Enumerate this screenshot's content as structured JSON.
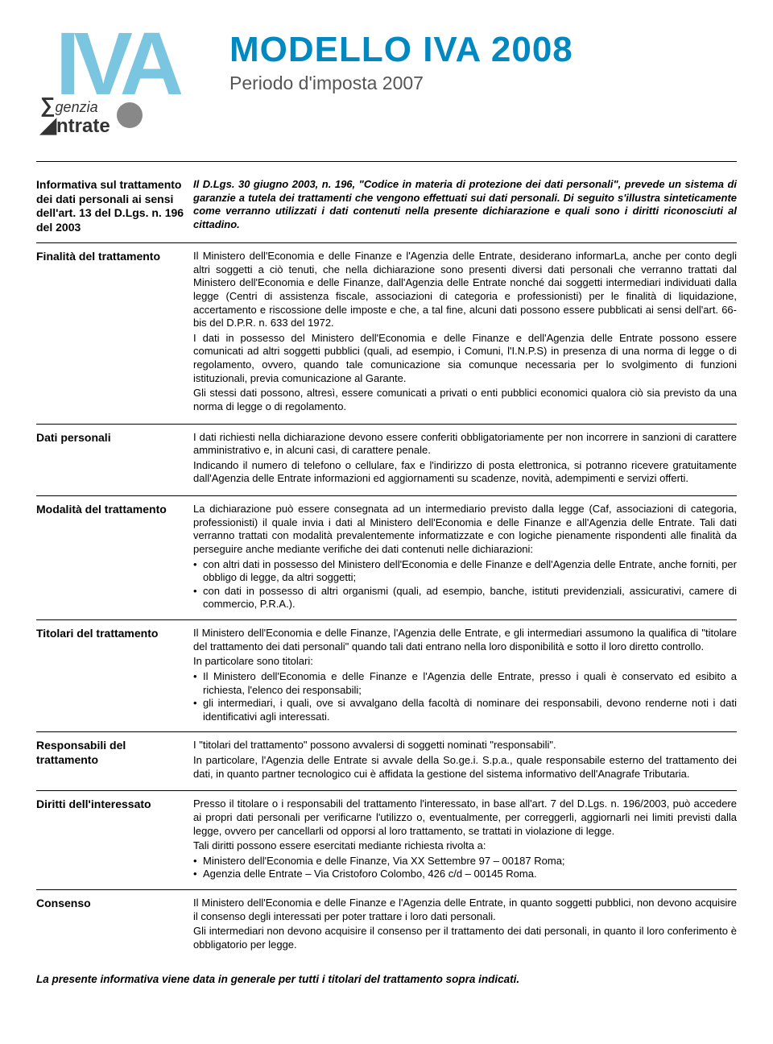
{
  "header": {
    "logo_letters": "IVA",
    "agency_line1": "genzia",
    "agency_line2": "ntrate",
    "title": "MODELLO IVA 2008",
    "subtitle": "Periodo d'imposta 2007"
  },
  "sections": [
    {
      "label": "Informativa sul trattamento dei dati personali ai sensi dell'art. 13 del D.Lgs. n. 196 del 2003",
      "body": "Il D.Lgs. 30 giugno 2003, n. 196, \"Codice in materia di protezione dei dati personali\", prevede un sistema di garanzie a tutela dei trattamenti che vengono effettuati sui dati personali. Di seguito s'illustra sinteticamente come verranno utilizzati i dati contenuti nella presente dichiarazione e quali sono i diritti riconosciuti al cittadino.",
      "bold_intro": true
    },
    {
      "label": "Finalità del trattamento",
      "body": "Il Ministero dell'Economia e delle Finanze e l'Agenzia delle Entrate, desiderano informarLa, anche per conto degli altri soggetti a ciò tenuti, che nella dichiarazione sono presenti diversi dati personali che verranno trattati dal Ministero dell'Economia e delle Finanze, dall'Agenzia delle Entrate nonché dai soggetti intermediari individuati dalla legge (Centri di assistenza fiscale, associazioni di categoria e professionisti) per le finalità di liquidazione, accertamento e riscossione delle imposte e che, a tal fine, alcuni dati possono essere pubblicati ai sensi dell'art. 66-bis del D.P.R. n. 633 del 1972.\nI dati in possesso del Ministero dell'Economia e delle Finanze e dell'Agenzia delle Entrate possono essere comunicati ad altri soggetti pubblici (quali, ad esempio, i Comuni, l'I.N.P.S) in presenza di una norma di legge o di regolamento, ovvero, quando tale comunicazione sia comunque necessaria per lo svolgimento di funzioni istituzionali, previa comunicazione al Garante.\nGli stessi dati possono, altresì, essere comunicati a privati o enti pubblici economici qualora ciò sia previsto da una norma di legge o di regolamento."
    },
    {
      "label": "Dati personali",
      "body": "I dati richiesti nella dichiarazione devono essere conferiti obbligatoriamente per non incorrere in sanzioni di carattere amministrativo e, in alcuni casi, di carattere penale.\nIndicando il numero di telefono o cellulare, fax e l'indirizzo di posta elettronica, si potranno ricevere gratuitamente dall'Agenzia delle Entrate informazioni ed aggiornamenti su scadenze, novità, adempimenti e servizi offerti."
    },
    {
      "label": "Modalità del trattamento",
      "body": "La dichiarazione può essere consegnata ad un intermediario previsto dalla legge (Caf, associazioni di categoria, professionisti) il quale invia i dati al Ministero dell'Economia e delle Finanze e all'Agenzia delle Entrate. Tali dati verranno trattati con modalità prevalentemente informatizzate e con logiche pienamente rispondenti alle finalità da perseguire anche mediante verifiche dei dati contenuti nelle dichiarazioni:",
      "bullets": [
        "con altri dati in possesso del Ministero dell'Economia e delle Finanze e dell'Agenzia delle Entrate, anche forniti, per obbligo di legge, da altri soggetti;",
        "con dati in possesso di altri organismi (quali, ad esempio, banche, istituti previdenziali, assicurativi, camere di commercio, P.R.A.)."
      ]
    },
    {
      "label": "Titolari del trattamento",
      "body": "Il Ministero dell'Economia e delle Finanze, l'Agenzia delle Entrate, e gli intermediari assumono la qualifica di \"titolare del trattamento dei dati personali\" quando tali dati entrano nella loro disponibilità e sotto il loro diretto controllo.\nIn particolare sono titolari:",
      "bullets": [
        "Il Ministero dell'Economia e delle Finanze e l'Agenzia delle Entrate, presso i quali è conservato ed esibito a richiesta, l'elenco dei responsabili;",
        "gli intermediari, i quali, ove si avvalgano della facoltà di nominare dei responsabili, devono renderne noti i dati identificativi agli interessati."
      ]
    },
    {
      "label": "Responsabili del trattamento",
      "body": "I \"titolari del trattamento\" possono avvalersi di soggetti nominati \"responsabili\".\nIn particolare, l'Agenzia delle Entrate si avvale della So.ge.i. S.p.a., quale responsabile esterno del trattamento dei dati, in quanto partner tecnologico cui è affidata la gestione del sistema informativo dell'Anagrafe Tributaria."
    },
    {
      "label": "Diritti dell'interessato",
      "body": "Presso il titolare o i responsabili del trattamento l'interessato, in base all'art. 7 del D.Lgs. n. 196/2003, può accedere ai propri dati personali per verificarne l'utilizzo o, eventualmente, per correggerli, aggiornarli nei limiti previsti dalla legge, ovvero per cancellarli od opporsi al loro trattamento, se trattati in violazione di legge.\nTali diritti possono essere esercitati mediante richiesta rivolta a:",
      "bullets": [
        "Ministero dell'Economia e delle Finanze, Via XX Settembre 97 – 00187 Roma;",
        "Agenzia delle Entrate – Via Cristoforo Colombo, 426 c/d – 00145 Roma."
      ]
    },
    {
      "label": "Consenso",
      "body": "Il Ministero dell'Economia e delle Finanze e l'Agenzia delle Entrate, in quanto soggetti pubblici, non devono acquisire il consenso degli interessati per poter trattare i loro dati personali.\nGli intermediari non devono acquisire il consenso per il trattamento dei dati personali, in quanto il loro conferimento è obbligatorio per legge.",
      "last": true
    }
  ],
  "footer": "La presente informativa viene data in generale per tutti i titolari del trattamento sopra indicati."
}
